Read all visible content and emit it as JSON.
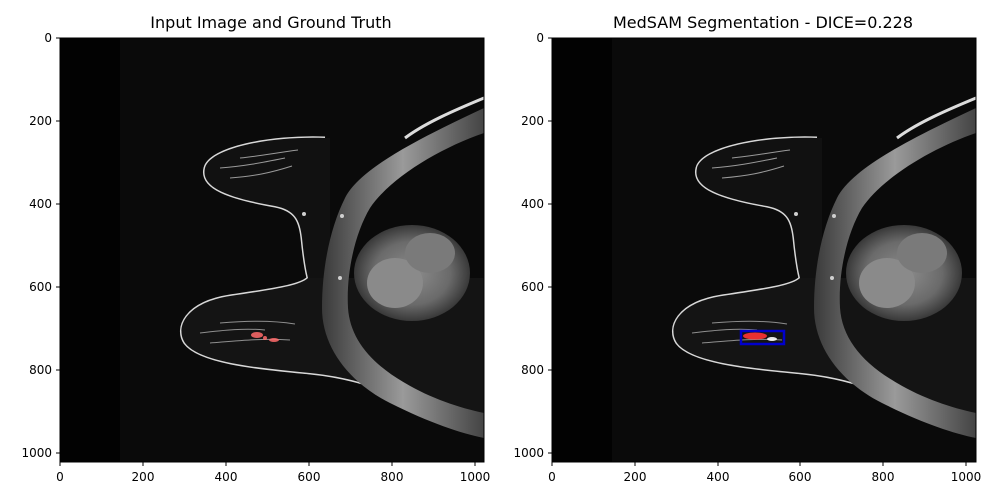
{
  "panels": [
    {
      "title": "Input Image and Ground Truth",
      "x_ticks": [
        "0",
        "200",
        "400",
        "600",
        "800",
        "1000"
      ],
      "y_ticks": [
        "0",
        "200",
        "400",
        "600",
        "800",
        "1000"
      ],
      "overlay": "ground-truth-mask",
      "overlay_color": "#ff6b6b"
    },
    {
      "title": "MedSAM Segmentation - DICE=0.228",
      "x_ticks": [
        "0",
        "200",
        "400",
        "600",
        "800",
        "1000"
      ],
      "y_ticks": [
        "0",
        "200",
        "400",
        "600",
        "800",
        "1000"
      ],
      "overlay": "predicted-mask-with-bbox",
      "overlay_color": "#ff3333",
      "bbox_color": "#0000cc"
    }
  ],
  "image_extent": [
    0,
    1024,
    1024,
    0
  ],
  "colors": {
    "background": "#000000",
    "tissue": "#bdbdbd",
    "mask_red": "#ff4444",
    "bbox_blue": "#0000cc"
  }
}
